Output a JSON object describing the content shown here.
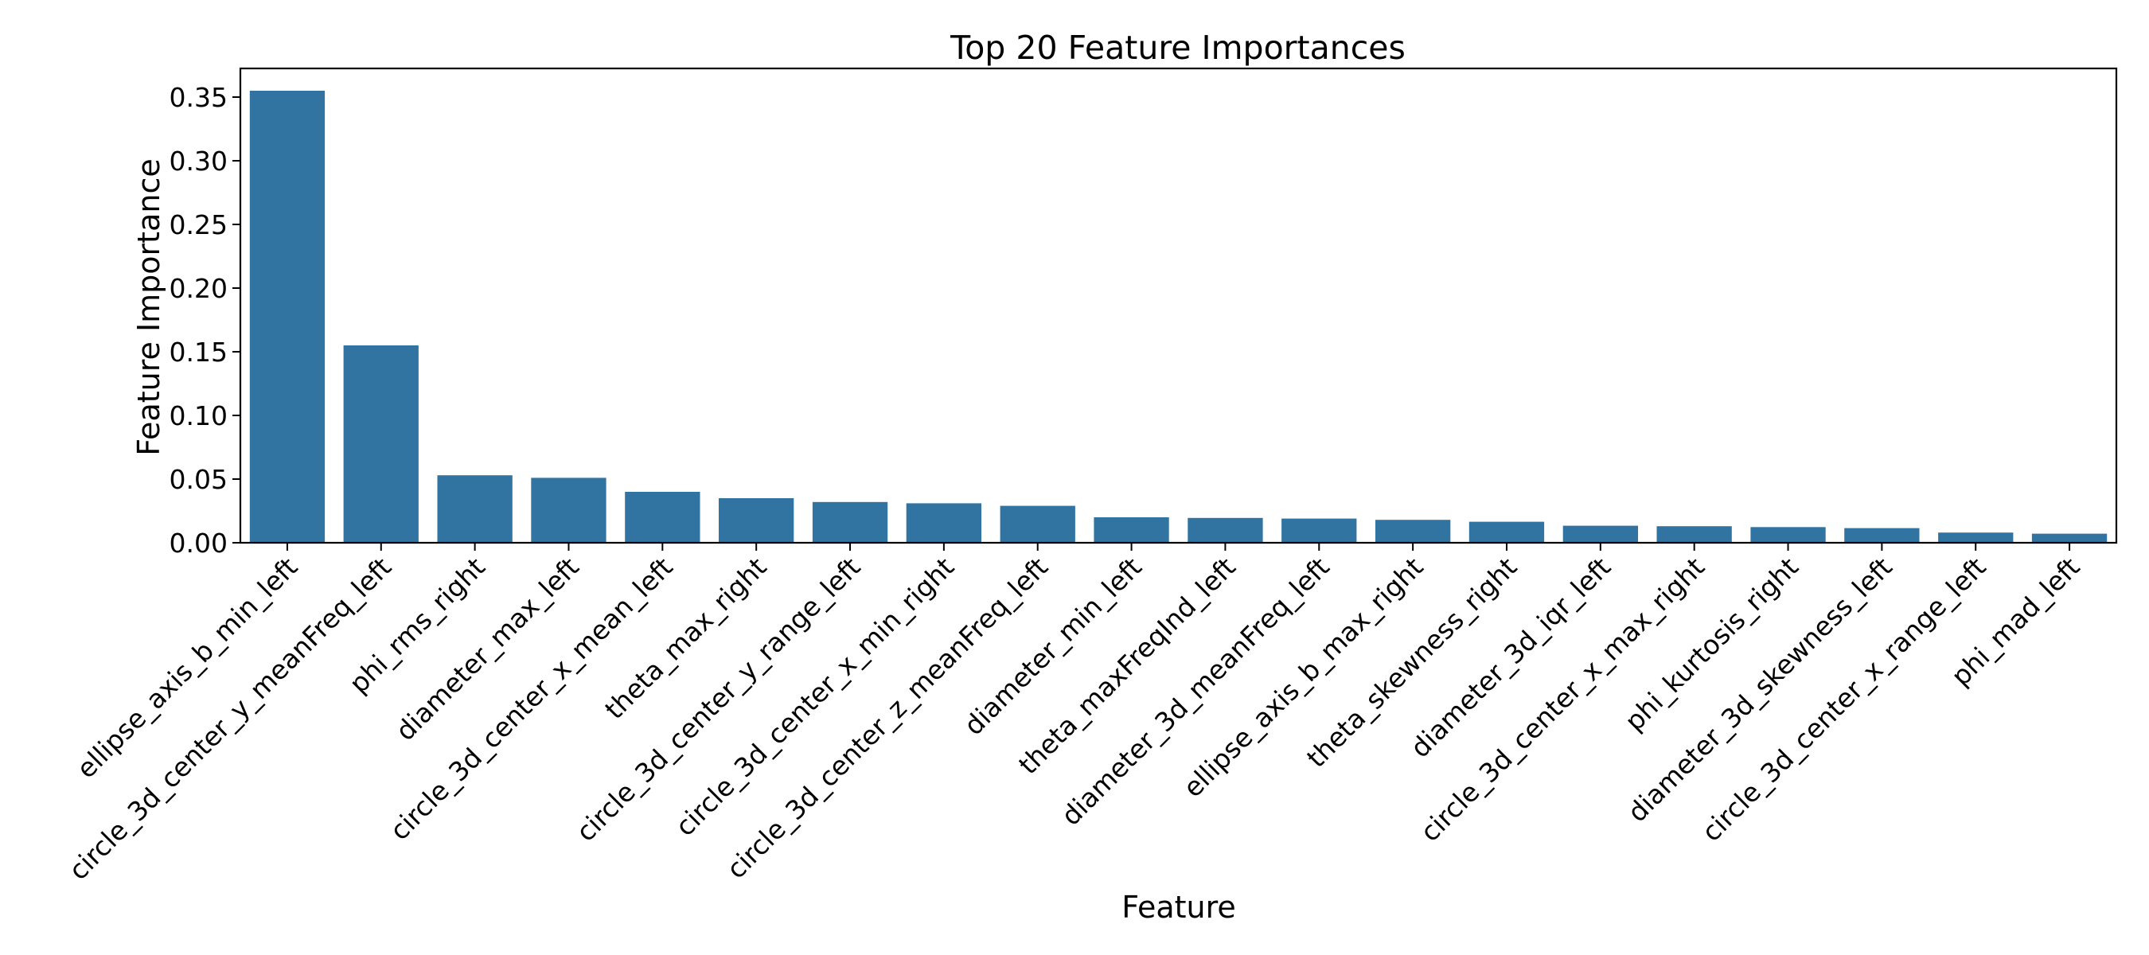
{
  "chart_data": {
    "type": "bar",
    "title": "Top 20 Feature Importances",
    "xlabel": "Feature",
    "ylabel": "Feature Importance",
    "ylim": [
      0,
      0.3725
    ],
    "yticks": [
      0.0,
      0.05,
      0.1,
      0.15,
      0.2,
      0.25,
      0.3,
      0.35
    ],
    "ytick_labels": [
      "0.00",
      "0.05",
      "0.10",
      "0.15",
      "0.20",
      "0.25",
      "0.30",
      "0.35"
    ],
    "grid": false,
    "legend": null,
    "xtick_rotation": 45,
    "bar_color": "#3274a1",
    "categories": [
      "ellipse_axis_b_min_left",
      "circle_3d_center_y_meanFreq_left",
      "phi_rms_right",
      "diameter_max_left",
      "circle_3d_center_x_mean_left",
      "theta_max_right",
      "circle_3d_center_y_range_left",
      "circle_3d_center_x_min_right",
      "circle_3d_center_z_meanFreq_left",
      "diameter_min_left",
      "theta_maxFreqInd_left",
      "diameter_3d_meanFreq_left",
      "ellipse_axis_b_max_right",
      "theta_skewness_right",
      "diameter_3d_iqr_left",
      "circle_3d_center_x_max_right",
      "phi_kurtosis_right",
      "diameter_3d_skewness_left",
      "circle_3d_center_x_range_left",
      "phi_mad_left"
    ],
    "values": [
      0.355,
      0.155,
      0.053,
      0.051,
      0.04,
      0.035,
      0.032,
      0.031,
      0.029,
      0.02,
      0.0195,
      0.019,
      0.018,
      0.0165,
      0.0134,
      0.013,
      0.0123,
      0.0115,
      0.008,
      0.0071
    ]
  }
}
